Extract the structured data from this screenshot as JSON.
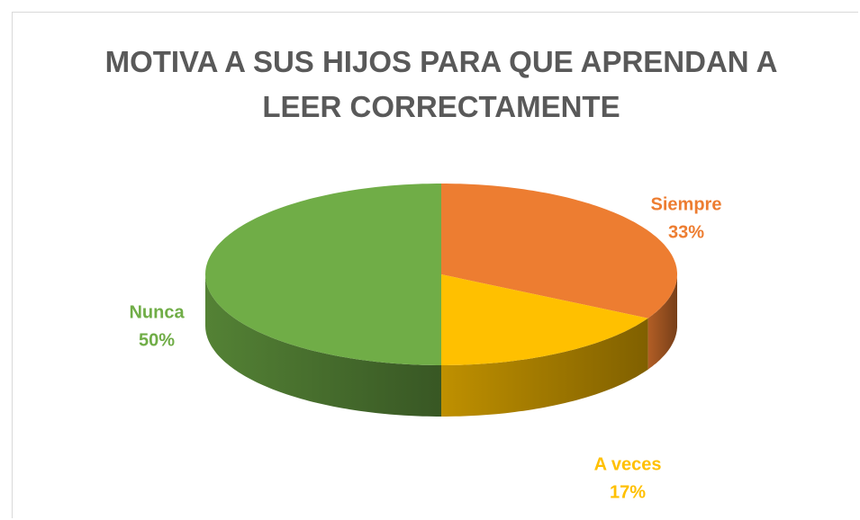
{
  "chart_data": {
    "type": "pie",
    "title": "MOTIVA A SUS HIJOS PARA QUE APRENDAN A LEER CORRECTAMENTE",
    "categories": [
      "Siempre",
      "A veces",
      "Nunca"
    ],
    "values": [
      33,
      17,
      50
    ],
    "value_labels": [
      "33%",
      "17%",
      "50%"
    ],
    "colors": [
      "#ED7D31",
      "#FFC000",
      "#70AD47"
    ]
  }
}
